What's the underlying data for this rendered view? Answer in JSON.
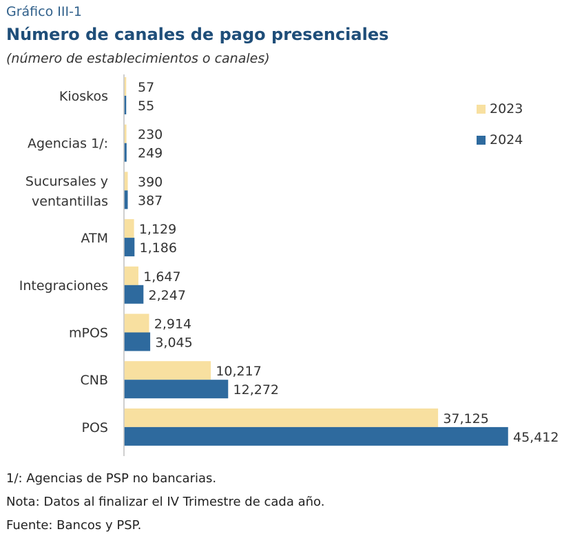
{
  "header": {
    "label": "Gráfico III-1",
    "title": "Número de canales de pago presenciales",
    "subtitle": "(número de establecimientos o canales)"
  },
  "notes": [
    "1/: Agencias de PSP no bancarias.",
    "Nota: Datos al finalizar el IV Trimestre de cada año.",
    "Fuente: Bancos y PSP."
  ],
  "colors": {
    "s2023": "#f8e0a0",
    "s2024": "#2e6a9e",
    "axis": "#bfbfbf",
    "text": "#333333"
  },
  "chart_data": {
    "type": "bar",
    "orientation": "horizontal",
    "categories": [
      [
        "Kioskos"
      ],
      [
        "Agencias 1/:"
      ],
      [
        "Sucursales y",
        "ventantillas"
      ],
      [
        "ATM"
      ],
      [
        "Integraciones"
      ],
      [
        "mPOS"
      ],
      [
        "CNB"
      ],
      [
        "POS"
      ]
    ],
    "series": [
      {
        "name": "2023",
        "values": [
          57,
          230,
          390,
          1129,
          1647,
          2914,
          10217,
          37125
        ],
        "labels": [
          "57",
          "230",
          "390",
          "1,129",
          "1,647",
          "2,914",
          "10,217",
          "37,125"
        ]
      },
      {
        "name": "2024",
        "values": [
          55,
          249,
          387,
          1186,
          2247,
          3045,
          12272,
          45412
        ],
        "labels": [
          "55",
          "249",
          "387",
          "1,186",
          "2,247",
          "3,045",
          "12,272",
          "45,412"
        ]
      }
    ],
    "legend_position": "top-right",
    "grid": false,
    "xlim": [
      0,
      45412
    ]
  }
}
